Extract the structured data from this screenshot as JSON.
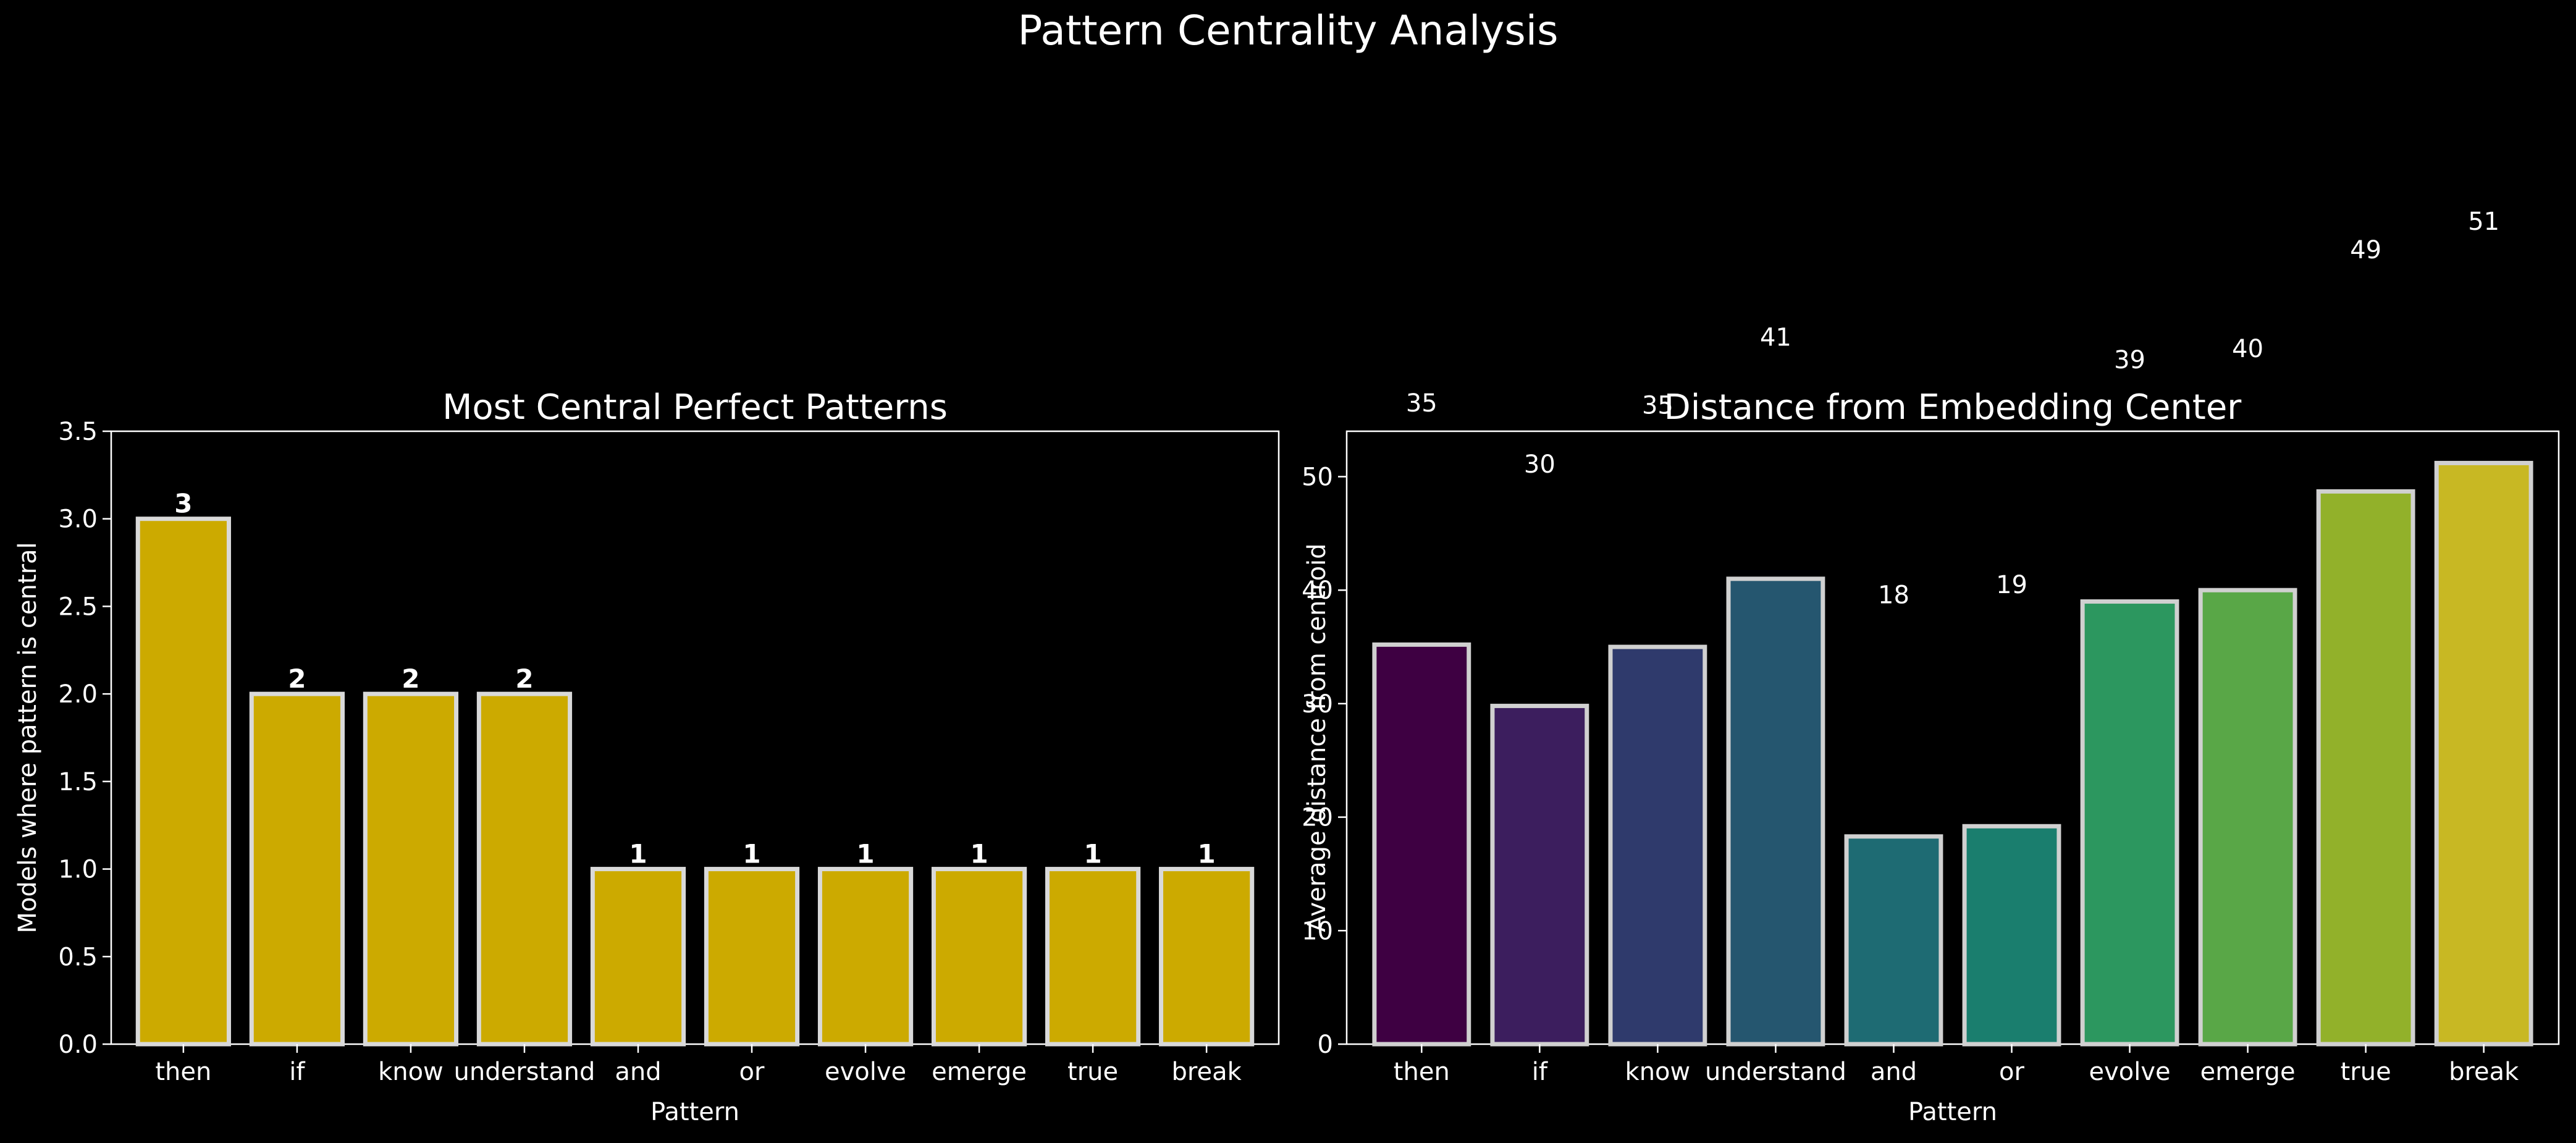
{
  "figure": {
    "suptitle": "Pattern Centrality Analysis",
    "background": "#000000",
    "text_color": "#ffffff"
  },
  "chart_data": [
    {
      "type": "bar",
      "title": "Most Central Perfect Patterns",
      "xlabel": "Pattern",
      "ylabel": "Models where pattern is central",
      "categories": [
        "then",
        "if",
        "know",
        "understand",
        "and",
        "or",
        "evolve",
        "emerge",
        "true",
        "break"
      ],
      "values": [
        3,
        2,
        2,
        2,
        1,
        1,
        1,
        1,
        1,
        1
      ],
      "value_labels": [
        "3",
        "2",
        "2",
        "2",
        "1",
        "1",
        "1",
        "1",
        "1",
        "1"
      ],
      "ylim": [
        0,
        3.5
      ],
      "yticks": [
        0.0,
        0.5,
        1.0,
        1.5,
        2.0,
        2.5,
        3.0,
        3.5
      ],
      "ytick_labels": [
        "0.0",
        "0.5",
        "1.0",
        "1.5",
        "2.0",
        "2.5",
        "3.0",
        "3.5"
      ],
      "bar_color": "#ccaa00",
      "edge_color": "#d9d9d9",
      "grid": false,
      "legend": false
    },
    {
      "type": "bar",
      "title": "Distance from Embedding Center",
      "xlabel": "Pattern",
      "ylabel": "Average distance from centroid",
      "categories": [
        "then",
        "if",
        "know",
        "understand",
        "and",
        "or",
        "evolve",
        "emerge",
        "true",
        "break"
      ],
      "values": [
        35.2,
        29.8,
        35.0,
        41.0,
        18.3,
        19.2,
        39.0,
        40.0,
        48.7,
        51.2
      ],
      "value_labels": [
        "35",
        "30",
        "35",
        "41",
        "18",
        "19",
        "39",
        "40",
        "49",
        "51"
      ],
      "value_label_offset": 20,
      "ylim": [
        0,
        54
      ],
      "yticks": [
        0,
        10,
        20,
        30,
        40,
        50
      ],
      "ytick_labels": [
        "0",
        "10",
        "20",
        "30",
        "40",
        "50"
      ],
      "bar_colors": [
        "#3e0042",
        "#3c1e5e",
        "#2f3a6c",
        "#25566f",
        "#1e6b73",
        "#1a7e6e",
        "#2c975f",
        "#59a747",
        "#92b12a",
        "#c8b823"
      ],
      "edge_color": "#d0d0d0",
      "grid": false,
      "legend": false
    }
  ]
}
